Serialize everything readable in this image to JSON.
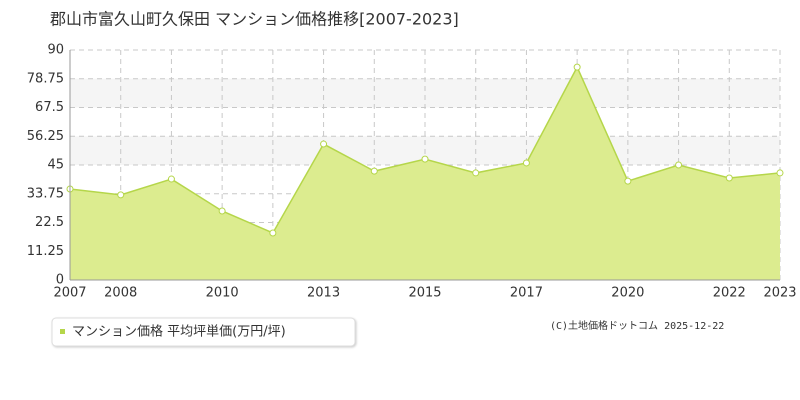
{
  "chart_data": {
    "type": "area",
    "title": "郡山市富久山町久保田 マンション価格推移[2007-2023]",
    "categories": [
      "2007",
      "2008",
      null,
      "2010",
      null,
      "2013",
      null,
      "2015",
      null,
      "2017",
      null,
      "2020",
      null,
      "2022",
      "2023"
    ],
    "series": [
      {
        "name": "マンション価格 平均坪単価(万円/坪)",
        "color": "#b5d64a",
        "fill": "#dcec8f",
        "values": [
          35.6,
          33.3,
          39.5,
          27.0,
          18.4,
          53.2,
          42.6,
          47.3,
          41.9,
          45.8,
          83.3,
          38.7,
          45.0,
          39.9,
          41.9
        ]
      }
    ],
    "ylim": [
      0,
      90
    ],
    "yticks": [
      0,
      11.25,
      22.5,
      33.75,
      45,
      56.25,
      67.5,
      78.75,
      90
    ],
    "grid": true,
    "copyright": "(C)土地価格ドットコム 2025-12-22"
  }
}
